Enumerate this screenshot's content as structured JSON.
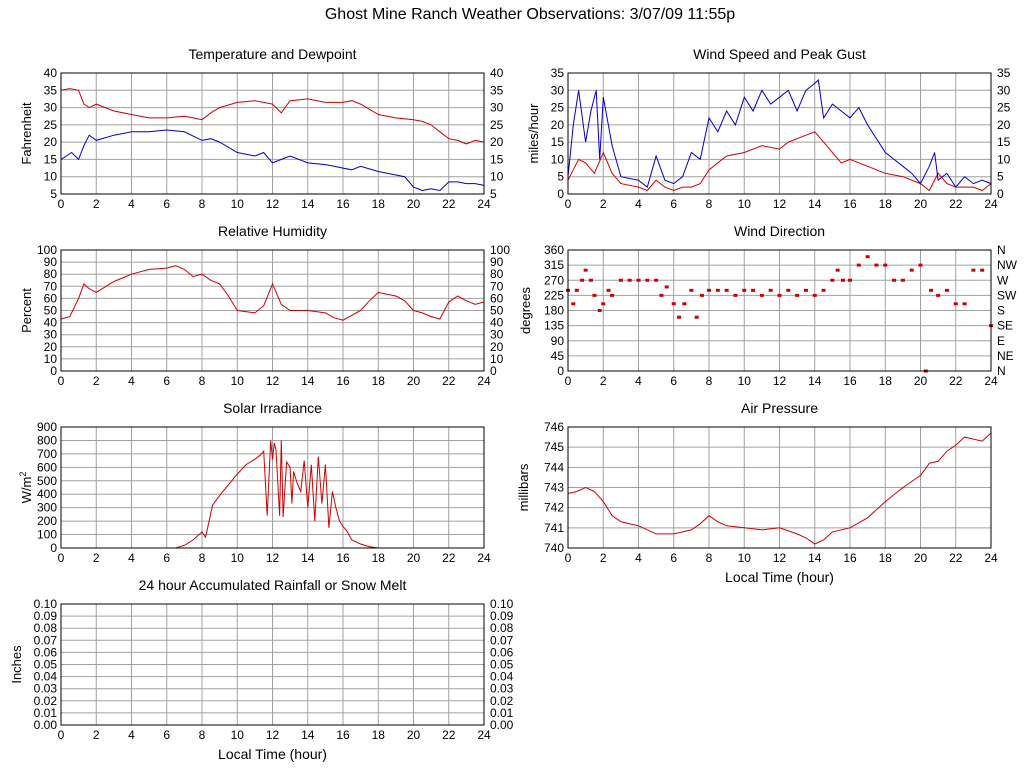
{
  "page": {
    "title": "Ghost Mine Ranch Weather Observations: 3/07/09 11:55p"
  },
  "colors": {
    "temperature": "#d00000",
    "dewpoint": "#0000c8",
    "wind_speed": "#d00000",
    "gust": "#0000c8",
    "grid": "#a0a0a0",
    "frame": "#000000"
  },
  "chart_data": [
    {
      "id": "temp",
      "type": "line",
      "title": "Temperature and Dewpoint",
      "ylabel": "Fahrenheit",
      "xlabel": "",
      "xlim": [
        0,
        24
      ],
      "ylim": [
        5,
        40
      ],
      "x_ticks": [
        "0",
        "2",
        "4",
        "6",
        "8",
        "10",
        "12",
        "14",
        "16",
        "18",
        "20",
        "22",
        "24"
      ],
      "y_ticks": [
        "5",
        "10",
        "15",
        "20",
        "25",
        "30",
        "35",
        "40"
      ],
      "right_ticks": [
        "5",
        "10",
        "15",
        "20",
        "25",
        "30",
        "35",
        "40"
      ],
      "grid": true,
      "series": [
        {
          "name": "Temperature",
          "color": "#d00000",
          "x": [
            0,
            0.5,
            1,
            1.3,
            1.6,
            2,
            3,
            4,
            5,
            6,
            7,
            7.5,
            8,
            8.5,
            9,
            10,
            11,
            11.5,
            12,
            12.5,
            13,
            14,
            15,
            16,
            16.5,
            17,
            18,
            19,
            20,
            20.5,
            21,
            21.5,
            22,
            22.5,
            23,
            23.5,
            24
          ],
          "y": [
            35,
            35.5,
            35,
            31,
            30,
            31,
            29,
            28,
            27,
            27,
            27.5,
            27,
            26.5,
            28.5,
            30,
            31.5,
            32,
            31.5,
            31,
            28.5,
            32,
            32.5,
            31.5,
            31.5,
            32,
            31,
            28,
            27,
            26.5,
            26,
            25,
            23,
            21,
            20.5,
            19.5,
            20.5,
            20
          ]
        },
        {
          "name": "Dewpoint",
          "color": "#0000c8",
          "x": [
            0,
            0.3,
            0.6,
            1,
            1.3,
            1.6,
            2,
            3,
            4,
            5,
            6,
            7,
            8,
            8.5,
            9,
            10,
            11,
            11.5,
            12,
            12.5,
            13,
            14,
            15,
            15.5,
            16,
            16.5,
            17,
            18,
            19,
            19.5,
            20,
            20.5,
            21,
            21.5,
            22,
            22.5,
            23,
            23.5,
            24
          ],
          "y": [
            15,
            16,
            17,
            15,
            19,
            22,
            20.5,
            22,
            23,
            23,
            23.5,
            23,
            20.5,
            21,
            20,
            17,
            16,
            17,
            14,
            15,
            16,
            14,
            13.5,
            13,
            12.5,
            12,
            13,
            11.5,
            10.5,
            10,
            7,
            6,
            6.5,
            6,
            8.5,
            8.5,
            8,
            8,
            7.5
          ]
        }
      ]
    },
    {
      "id": "wind",
      "type": "line",
      "title": "Wind Speed and Peak Gust",
      "ylabel": "miles/hour",
      "xlabel": "",
      "xlim": [
        0,
        24
      ],
      "ylim": [
        0,
        35
      ],
      "x_ticks": [
        "0",
        "2",
        "4",
        "6",
        "8",
        "10",
        "12",
        "14",
        "16",
        "18",
        "20",
        "22",
        "24"
      ],
      "y_ticks": [
        "0",
        "5",
        "10",
        "15",
        "20",
        "25",
        "30",
        "35"
      ],
      "right_ticks": [
        "0",
        "5",
        "10",
        "15",
        "20",
        "25",
        "30",
        "35"
      ],
      "grid": true,
      "series": [
        {
          "name": "Wind Speed",
          "color": "#d00000",
          "x": [
            0,
            0.3,
            0.6,
            1,
            1.5,
            2,
            2.5,
            3,
            4,
            4.5,
            5,
            5.5,
            6,
            6.5,
            7,
            7.5,
            8,
            9,
            10,
            11,
            12,
            12.5,
            13,
            13.5,
            14,
            14.5,
            15,
            15.5,
            16,
            17,
            18,
            19,
            20,
            20.5,
            21,
            21.5,
            22,
            23,
            23.5,
            24
          ],
          "y": [
            4,
            7,
            10,
            9,
            6,
            12,
            6,
            3,
            2,
            1,
            4,
            2,
            1,
            2,
            2,
            3,
            7,
            11,
            12,
            14,
            13,
            15,
            16,
            17,
            18,
            15,
            12,
            9,
            10,
            8,
            6,
            5,
            3,
            1,
            6,
            3,
            2,
            2,
            1,
            3
          ]
        },
        {
          "name": "Peak Gust",
          "color": "#0000c8",
          "x": [
            0,
            0.3,
            0.6,
            1,
            1.3,
            1.6,
            1.8,
            2,
            2.5,
            3,
            4,
            4.5,
            5,
            5.5,
            6,
            6.5,
            7,
            7.5,
            8,
            8.5,
            9,
            9.5,
            10,
            10.5,
            11,
            11.5,
            12,
            12.5,
            13,
            13.5,
            14,
            14.2,
            14.5,
            15,
            15.5,
            16,
            16.5,
            17,
            18,
            19,
            19.5,
            20,
            20.5,
            20.8,
            21,
            21.5,
            22,
            22.5,
            23,
            23.5,
            24
          ],
          "y": [
            5,
            20,
            30,
            15,
            24,
            30,
            10,
            28,
            14,
            5,
            4,
            2,
            11,
            4,
            3,
            5,
            12,
            10,
            22,
            18,
            24,
            20,
            28,
            24,
            30,
            26,
            28,
            30,
            24,
            30,
            32,
            33,
            22,
            26,
            24,
            22,
            25,
            20,
            12,
            8,
            6,
            3,
            8,
            12,
            4,
            6,
            2,
            5,
            3,
            4,
            3
          ]
        }
      ]
    },
    {
      "id": "humidity",
      "type": "line",
      "title": "Relative Humidity",
      "ylabel": "Percent",
      "xlabel": "",
      "xlim": [
        0,
        24
      ],
      "ylim": [
        0,
        100
      ],
      "x_ticks": [
        "0",
        "2",
        "4",
        "6",
        "8",
        "10",
        "12",
        "14",
        "16",
        "18",
        "20",
        "22",
        "24"
      ],
      "y_ticks": [
        "0",
        "10",
        "20",
        "30",
        "40",
        "50",
        "60",
        "70",
        "80",
        "90",
        "100"
      ],
      "right_ticks": [
        "0",
        "10",
        "20",
        "30",
        "40",
        "50",
        "60",
        "70",
        "80",
        "90",
        "100"
      ],
      "grid": true,
      "series": [
        {
          "name": "Relative Humidity",
          "color": "#d00000",
          "x": [
            0,
            0.5,
            1,
            1.3,
            1.6,
            2,
            3,
            4,
            5,
            6,
            6.5,
            7,
            7.5,
            8,
            8.5,
            9,
            9.5,
            10,
            11,
            11.5,
            12,
            12.5,
            13,
            14,
            15,
            15.5,
            16,
            17,
            17.5,
            18,
            19,
            19.5,
            20,
            20.5,
            21,
            21.5,
            22,
            22.5,
            23,
            23.5,
            24
          ],
          "y": [
            43,
            45,
            60,
            72,
            68,
            65,
            74,
            80,
            84,
            85,
            87,
            84,
            78,
            80,
            75,
            72,
            62,
            50,
            48,
            54,
            72,
            55,
            50,
            50,
            48,
            44,
            42,
            50,
            58,
            65,
            62,
            58,
            50,
            48,
            45,
            43,
            57,
            62,
            58,
            55,
            57
          ]
        }
      ]
    },
    {
      "id": "winddir",
      "type": "scatter",
      "title": "Wind Direction",
      "ylabel": "degrees",
      "xlabel": "",
      "xlim": [
        0,
        24
      ],
      "ylim": [
        0,
        360
      ],
      "x_ticks": [
        "0",
        "2",
        "4",
        "6",
        "8",
        "10",
        "12",
        "14",
        "16",
        "18",
        "20",
        "22",
        "24"
      ],
      "y_ticks": [
        "0",
        "45",
        "90",
        "135",
        "180",
        "225",
        "270",
        "315",
        "360"
      ],
      "right_ticks": [
        "N",
        "NE",
        "E",
        "SE",
        "S",
        "SW",
        "W",
        "NW",
        "N"
      ],
      "grid": true,
      "series": [
        {
          "name": "Direction",
          "color": "#d00000",
          "x": [
            0,
            0.3,
            0.5,
            0.8,
            1,
            1.3,
            1.5,
            1.8,
            2,
            2.3,
            2.5,
            3,
            3.5,
            4,
            4.5,
            5,
            5.3,
            5.6,
            6,
            6.3,
            6.6,
            7,
            7.3,
            7.6,
            8,
            8.5,
            9,
            9.5,
            10,
            10.5,
            11,
            11.5,
            12,
            12.5,
            13,
            13.5,
            14,
            14.5,
            15,
            15.3,
            15.6,
            16,
            16.5,
            17,
            17.5,
            18,
            18.5,
            19,
            19.5,
            20,
            20.3,
            20.6,
            21,
            21.5,
            22,
            22.5,
            23,
            23.5,
            24
          ],
          "y": [
            240,
            200,
            240,
            270,
            300,
            270,
            225,
            180,
            200,
            240,
            225,
            270,
            270,
            270,
            270,
            270,
            225,
            250,
            200,
            160,
            200,
            240,
            160,
            225,
            240,
            240,
            240,
            225,
            240,
            240,
            225,
            240,
            225,
            240,
            225,
            240,
            225,
            240,
            270,
            300,
            270,
            270,
            315,
            340,
            315,
            315,
            270,
            270,
            300,
            315,
            0,
            240,
            225,
            240,
            200,
            200,
            300,
            300,
            135
          ]
        }
      ]
    },
    {
      "id": "solar",
      "type": "line",
      "title": "Solar Irradiance",
      "ylabel": "W/m",
      "ylabel_sup": "2",
      "xlabel": "",
      "xlim": [
        0,
        24
      ],
      "ylim": [
        0,
        900
      ],
      "x_ticks": [
        "0",
        "2",
        "4",
        "6",
        "8",
        "10",
        "12",
        "14",
        "16",
        "18",
        "20",
        "22",
        "24"
      ],
      "y_ticks": [
        "0",
        "100",
        "200",
        "300",
        "400",
        "500",
        "600",
        "700",
        "800",
        "900"
      ],
      "right_ticks": [],
      "grid": true,
      "series": [
        {
          "name": "Solar",
          "color": "#d00000",
          "x": [
            0,
            6.5,
            7,
            7.5,
            8,
            8.2,
            8.4,
            8.6,
            9,
            9.5,
            10,
            10.5,
            11,
            11.3,
            11.5,
            11.7,
            11.9,
            12,
            12.1,
            12.2,
            12.4,
            12.5,
            12.6,
            12.8,
            13,
            13.1,
            13.2,
            13.4,
            13.6,
            13.8,
            14,
            14.2,
            14.4,
            14.6,
            14.8,
            15,
            15.2,
            15.4,
            15.6,
            15.8,
            16,
            16.2,
            16.5,
            17,
            17.5,
            18,
            24
          ],
          "y": [
            0,
            0,
            20,
            60,
            120,
            80,
            200,
            320,
            390,
            470,
            550,
            620,
            660,
            690,
            720,
            240,
            800,
            660,
            780,
            730,
            240,
            800,
            230,
            640,
            600,
            330,
            570,
            480,
            420,
            650,
            300,
            620,
            200,
            680,
            330,
            620,
            150,
            420,
            300,
            200,
            160,
            130,
            60,
            30,
            10,
            0,
            0
          ]
        }
      ]
    },
    {
      "id": "pressure",
      "type": "line",
      "title": "Air Pressure",
      "ylabel": "millibars",
      "xlabel": "Local Time (hour)",
      "xlim": [
        0,
        24
      ],
      "ylim": [
        740,
        746
      ],
      "x_ticks": [
        "0",
        "2",
        "4",
        "6",
        "8",
        "10",
        "12",
        "14",
        "16",
        "18",
        "20",
        "22",
        "24"
      ],
      "y_ticks": [
        "740",
        "741",
        "742",
        "743",
        "744",
        "745",
        "746"
      ],
      "right_ticks": [],
      "grid": true,
      "series": [
        {
          "name": "Pressure",
          "color": "#d00000",
          "x": [
            0,
            0.5,
            1,
            1.5,
            2,
            2.5,
            3,
            4,
            5,
            6,
            7,
            7.5,
            8,
            8.5,
            9,
            10,
            11,
            12,
            13,
            13.5,
            14,
            14.5,
            15,
            16,
            17,
            18,
            19,
            19.5,
            20,
            20.5,
            21,
            21.5,
            22,
            22.5,
            23,
            23.5,
            24
          ],
          "y": [
            742.7,
            742.8,
            743,
            742.8,
            742.3,
            741.6,
            741.3,
            741.1,
            740.7,
            740.7,
            740.9,
            741.2,
            741.6,
            741.3,
            741.1,
            741,
            740.9,
            741,
            740.7,
            740.5,
            740.2,
            740.4,
            740.8,
            741,
            741.5,
            742.3,
            743,
            743.3,
            743.6,
            744.2,
            744.3,
            744.8,
            745.1,
            745.5,
            745.4,
            745.3,
            745.7
          ]
        }
      ]
    },
    {
      "id": "rain",
      "type": "line",
      "title": "24 hour Accumulated Rainfall or Snow Melt",
      "ylabel": "Inches",
      "xlabel": "Local Time (hour)",
      "xlim": [
        0,
        24
      ],
      "ylim": [
        0,
        0.1
      ],
      "x_ticks": [
        "0",
        "2",
        "4",
        "6",
        "8",
        "10",
        "12",
        "14",
        "16",
        "18",
        "20",
        "22",
        "24"
      ],
      "y_ticks": [
        "0.00",
        "0.01",
        "0.02",
        "0.03",
        "0.04",
        "0.05",
        "0.06",
        "0.07",
        "0.08",
        "0.09",
        "0.10"
      ],
      "right_ticks": [
        "0.00",
        "0.01",
        "0.02",
        "0.03",
        "0.04",
        "0.05",
        "0.06",
        "0.07",
        "0.08",
        "0.09",
        "0.10"
      ],
      "grid": true,
      "series": [
        {
          "name": "Rainfall",
          "color": "#d00000",
          "x": [
            0,
            24
          ],
          "y": [
            0,
            0
          ]
        }
      ]
    }
  ]
}
